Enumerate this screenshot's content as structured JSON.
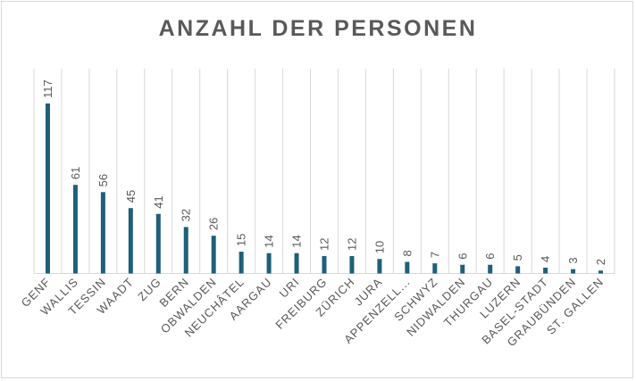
{
  "chart_data": {
    "type": "bar",
    "title": "ANZAHL DER PERSONEN",
    "categories": [
      "GENF",
      "WALLIS",
      "TESSIN",
      "WAADT",
      "ZUG",
      "BERN",
      "OBWALDEN",
      "NEUCHÂTEL",
      "AARGAU",
      "URI",
      "FREIBURG",
      "ZÜRICH",
      "JURA",
      "APPENZELL...",
      "SCHWYZ",
      "NIDWALDEN",
      "THURGAU",
      "LUZERN",
      "BASEL-STADT",
      "GRAUBÜNDEN",
      "ST. GALLEN"
    ],
    "values": [
      117,
      61,
      56,
      45,
      41,
      32,
      26,
      15,
      14,
      14,
      12,
      12,
      10,
      8,
      7,
      6,
      6,
      5,
      4,
      3,
      2
    ],
    "ylim": [
      0,
      117
    ],
    "xlabel": "",
    "ylabel": "",
    "grid": "vertical",
    "colors": {
      "bar": "#1f5f7a",
      "grid": "#d9d9d9",
      "text": "#595959"
    }
  }
}
